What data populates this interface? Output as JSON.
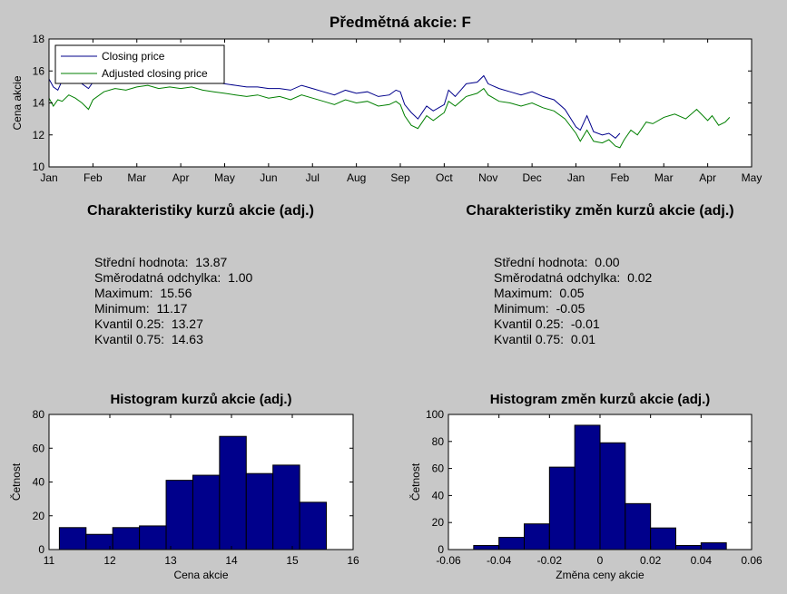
{
  "figure": {
    "title": "Předmětná akcie: F",
    "background": "#c8c8c8"
  },
  "chart_data": [
    {
      "type": "line",
      "title": "Předmětná akcie: F",
      "xlabel": "",
      "ylabel": "Cena akcie",
      "x_ticks": [
        "Jan",
        "Feb",
        "Mar",
        "Apr",
        "May",
        "Jun",
        "Jul",
        "Aug",
        "Sep",
        "Oct",
        "Nov",
        "Dec",
        "Jan",
        "Feb",
        "Mar",
        "Apr",
        "May"
      ],
      "xlim": [
        0,
        16
      ],
      "ylim": [
        10,
        18
      ],
      "y_ticks": [
        10,
        12,
        14,
        16,
        18
      ],
      "legend_position": "top-left",
      "grid": false,
      "series": [
        {
          "name": "Closing price",
          "color": "#00008b",
          "x": [
            0,
            0.1,
            0.2,
            0.3,
            0.45,
            0.6,
            0.75,
            0.9,
            1.0,
            1.25,
            1.5,
            1.75,
            2.0,
            2.25,
            2.5,
            2.75,
            3.0,
            3.25,
            3.5,
            3.75,
            4.0,
            4.25,
            4.5,
            4.75,
            5.0,
            5.25,
            5.5,
            5.75,
            6.0,
            6.25,
            6.5,
            6.75,
            7.0,
            7.25,
            7.5,
            7.75,
            7.9,
            8.0,
            8.1,
            8.25,
            8.4,
            8.6,
            8.75,
            9.0,
            9.1,
            9.25,
            9.5,
            9.75,
            9.9,
            10.0,
            10.25,
            10.5,
            10.75,
            11.0,
            11.25,
            11.5,
            11.75,
            12.0,
            12.1,
            12.25,
            12.4,
            12.6,
            12.75,
            12.9,
            13.0
          ],
          "y": [
            15.5,
            15.0,
            14.8,
            15.4,
            15.6,
            15.8,
            15.2,
            14.9,
            15.3,
            15.6,
            15.7,
            15.5,
            15.6,
            15.7,
            15.4,
            15.5,
            15.5,
            15.6,
            15.4,
            15.3,
            15.2,
            15.1,
            15.0,
            15.0,
            14.9,
            14.9,
            14.8,
            15.1,
            14.9,
            14.7,
            14.5,
            14.8,
            14.6,
            14.7,
            14.4,
            14.5,
            14.8,
            14.7,
            13.9,
            13.4,
            13.0,
            13.8,
            13.5,
            13.9,
            14.8,
            14.4,
            15.2,
            15.3,
            15.7,
            15.2,
            14.9,
            14.7,
            14.5,
            14.7,
            14.4,
            14.2,
            13.6,
            12.5,
            12.3,
            13.2,
            12.2,
            12.0,
            12.1,
            11.8,
            12.1
          ]
        },
        {
          "name": "Adjusted closing price",
          "color": "#007f00",
          "x": [
            0,
            0.1,
            0.2,
            0.3,
            0.45,
            0.6,
            0.75,
            0.9,
            1.0,
            1.25,
            1.5,
            1.75,
            2.0,
            2.25,
            2.5,
            2.75,
            3.0,
            3.25,
            3.5,
            3.75,
            4.0,
            4.25,
            4.5,
            4.75,
            5.0,
            5.25,
            5.5,
            5.75,
            6.0,
            6.25,
            6.5,
            6.75,
            7.0,
            7.25,
            7.5,
            7.75,
            7.9,
            8.0,
            8.1,
            8.25,
            8.4,
            8.6,
            8.75,
            9.0,
            9.1,
            9.25,
            9.5,
            9.75,
            9.9,
            10.0,
            10.25,
            10.5,
            10.75,
            11.0,
            11.25,
            11.5,
            11.75,
            12.0,
            12.1,
            12.25,
            12.4,
            12.6,
            12.75,
            12.9,
            13.0,
            13.1,
            13.25,
            13.4,
            13.6,
            13.75,
            14.0,
            14.25,
            14.5,
            14.75,
            15.0,
            15.1,
            15.25,
            15.4,
            15.5
          ],
          "y": [
            14.3,
            13.8,
            14.2,
            14.1,
            14.5,
            14.3,
            14.0,
            13.6,
            14.2,
            14.7,
            14.9,
            14.8,
            15.0,
            15.1,
            14.9,
            15.0,
            14.9,
            15.0,
            14.8,
            14.7,
            14.6,
            14.5,
            14.4,
            14.5,
            14.3,
            14.4,
            14.2,
            14.5,
            14.3,
            14.1,
            13.9,
            14.2,
            14.0,
            14.1,
            13.8,
            13.9,
            14.1,
            13.9,
            13.2,
            12.6,
            12.4,
            13.2,
            12.9,
            13.4,
            14.1,
            13.8,
            14.4,
            14.6,
            14.9,
            14.5,
            14.1,
            14.0,
            13.8,
            14.0,
            13.7,
            13.5,
            13.0,
            12.1,
            11.6,
            12.3,
            11.6,
            11.5,
            11.7,
            11.3,
            11.2,
            11.7,
            12.3,
            12.0,
            12.8,
            12.7,
            13.1,
            13.3,
            13.0,
            13.6,
            12.9,
            13.2,
            12.6,
            12.8,
            13.1
          ]
        }
      ]
    },
    {
      "type": "bar",
      "title": "Histogram kurzů akcie (adj.)",
      "xlabel": "Cena akcie",
      "ylabel": "Četnost",
      "xlim": [
        11,
        16
      ],
      "ylim": [
        0,
        80
      ],
      "x_ticks": [
        11,
        12,
        13,
        14,
        15,
        16
      ],
      "y_ticks": [
        0,
        20,
        40,
        60,
        80
      ],
      "bin_edges": [
        11.17,
        11.609,
        12.048,
        12.487,
        12.926,
        13.365,
        13.804,
        14.243,
        14.682,
        15.121,
        15.56
      ],
      "values": [
        13,
        9,
        13,
        14,
        41,
        44,
        67,
        45,
        50,
        28
      ],
      "bar_color": "#00008b"
    },
    {
      "type": "bar",
      "title": "Histogram změn kurzů akcie (adj.)",
      "xlabel": "Změna ceny akcie",
      "ylabel": "Četnost",
      "xlim": [
        -0.06,
        0.06
      ],
      "ylim": [
        0,
        100
      ],
      "x_ticks": [
        -0.06,
        -0.04,
        -0.02,
        0,
        0.02,
        0.04,
        0.06
      ],
      "y_ticks": [
        0,
        20,
        40,
        60,
        80,
        100
      ],
      "bin_edges": [
        -0.05,
        -0.04,
        -0.03,
        -0.02,
        -0.01,
        0.0,
        0.01,
        0.02,
        0.03,
        0.04,
        0.05
      ],
      "values": [
        3,
        9,
        19,
        61,
        92,
        79,
        34,
        16,
        3,
        5
      ],
      "bar_color": "#00008b"
    }
  ],
  "stats_left": {
    "title": "Charakteristiky kurzů akcie (adj.)",
    "rows": [
      {
        "label": "Střední hodnota:",
        "value": "13.87"
      },
      {
        "label": "Směrodatná odchylka:",
        "value": "1.00"
      },
      {
        "label": "Maximum:",
        "value": "15.56"
      },
      {
        "label": "Minimum:",
        "value": "11.17"
      },
      {
        "label": "Kvantil 0.25:",
        "value": "13.27"
      },
      {
        "label": "Kvantil 0.75:",
        "value": "14.63"
      }
    ]
  },
  "stats_right": {
    "title": "Charakteristiky změn kurzů akcie (adj.)",
    "rows": [
      {
        "label": "Střední hodnota:",
        "value": "0.00"
      },
      {
        "label": "Směrodatná odchylka:",
        "value": "0.02"
      },
      {
        "label": "Maximum:",
        "value": "0.05"
      },
      {
        "label": "Minimum:",
        "value": "-0.05"
      },
      {
        "label": "Kvantil 0.25:",
        "value": "-0.01"
      },
      {
        "label": "Kvantil 0.75:",
        "value": "0.01"
      }
    ]
  }
}
